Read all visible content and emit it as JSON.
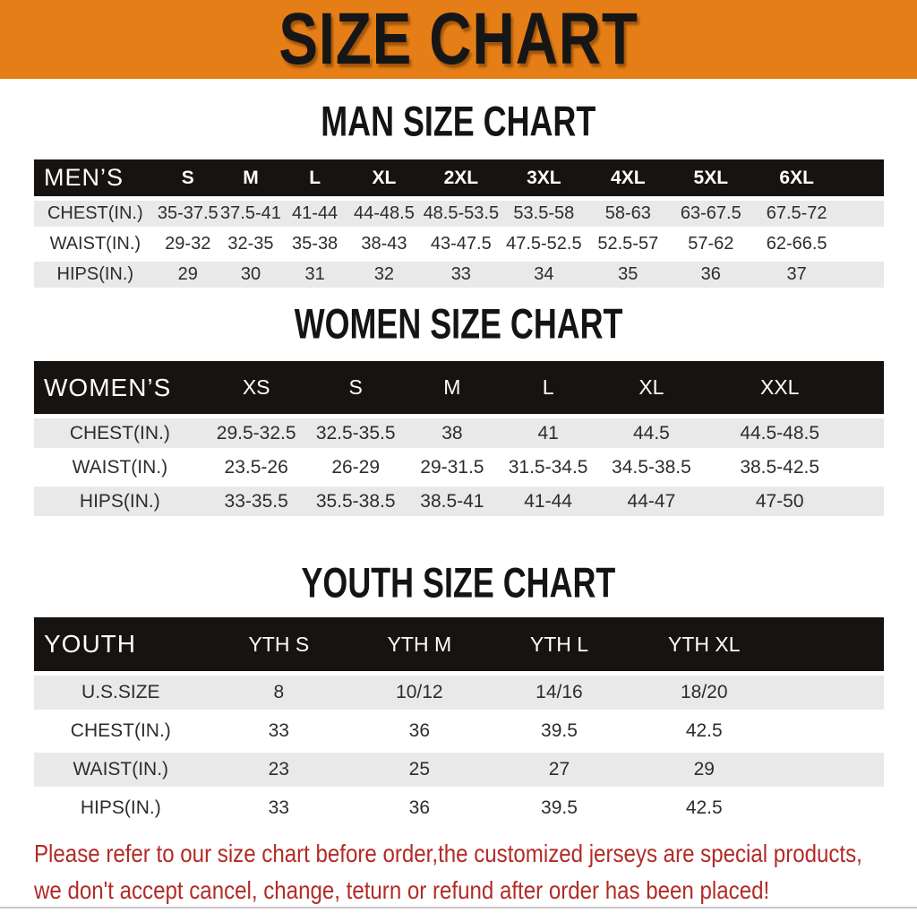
{
  "banner": {
    "title": "SIZE CHART"
  },
  "man": {
    "heading": "MAN SIZE CHART",
    "header": [
      "MEN’S",
      "S",
      "M",
      "L",
      "XL",
      "2XL",
      "3XL",
      "4XL",
      "5XL",
      "6XL"
    ],
    "rows": [
      {
        "label": "CHEST(IN.)",
        "values": [
          "35-37.5",
          "37.5-41",
          "41-44",
          "44-48.5",
          "48.5-53.5",
          "53.5-58",
          "58-63",
          "63-67.5",
          "67.5-72"
        ]
      },
      {
        "label": "WAIST(IN.)",
        "values": [
          "29-32",
          "32-35",
          "35-38",
          "38-43",
          "43-47.5",
          "47.5-52.5",
          "52.5-57",
          "57-62",
          "62-66.5"
        ]
      },
      {
        "label": "HIPS(IN.)",
        "values": [
          "29",
          "30",
          "31",
          "32",
          "33",
          "34",
          "35",
          "36",
          "37"
        ]
      }
    ]
  },
  "women": {
    "heading": "WOMEN SIZE CHART",
    "header": [
      "WOMEN’S",
      "XS",
      "S",
      "M",
      "L",
      "XL",
      "XXL"
    ],
    "rows": [
      {
        "label": "CHEST(IN.)",
        "values": [
          "29.5-32.5",
          "32.5-35.5",
          "38",
          "41",
          "44.5",
          "44.5-48.5"
        ]
      },
      {
        "label": "WAIST(IN.)",
        "values": [
          "23.5-26",
          "26-29",
          "29-31.5",
          "31.5-34.5",
          "34.5-38.5",
          "38.5-42.5"
        ]
      },
      {
        "label": "HIPS(IN.)",
        "values": [
          "33-35.5",
          "35.5-38.5",
          "38.5-41",
          "41-44",
          "44-47",
          "47-50"
        ]
      }
    ]
  },
  "youth": {
    "heading": "YOUTH SIZE CHART",
    "header": [
      "YOUTH",
      "YTH S",
      "YTH M",
      "YTH L",
      "YTH XL"
    ],
    "rows": [
      {
        "label": "U.S.SIZE",
        "values": [
          "8",
          "10/12",
          "14/16",
          "18/20"
        ]
      },
      {
        "label": "CHEST(IN.)",
        "values": [
          "33",
          "36",
          "39.5",
          "42.5"
        ]
      },
      {
        "label": "WAIST(IN.)",
        "values": [
          "23",
          "25",
          "27",
          "29"
        ]
      },
      {
        "label": "HIPS(IN.)",
        "values": [
          "33",
          "36",
          "39.5",
          "42.5"
        ]
      }
    ]
  },
  "footer": {
    "line1": "Please refer to our size chart before order,the customized jerseys are special products,",
    "line2": "we don't accept cancel, change, teturn or refund after order has been placed!"
  },
  "colors": {
    "banner_bg": "#E67E17",
    "banner_text": "#161616",
    "table_header_bg": "#171310",
    "table_header_text": "#FFFFFF",
    "row_alt_bg": "#E9E9E9",
    "row_bg": "#FFFFFF",
    "body_text": "#2D2D2D",
    "footer_text": "#B22B26",
    "divider": "#C9C9C9"
  }
}
